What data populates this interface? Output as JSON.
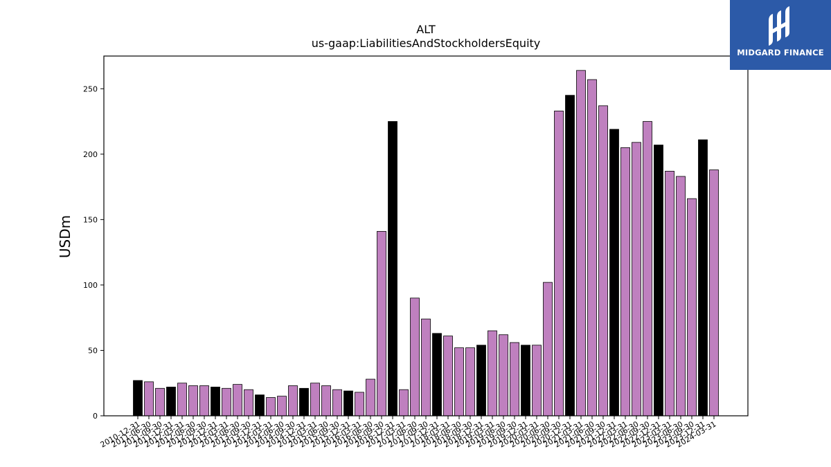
{
  "brand": {
    "name": "MIDGARD FINANCE",
    "logo_icon": "midgard-logo-icon",
    "background": "#2c5aa8"
  },
  "colors": {
    "annual": "#000000",
    "quarterly": "#bf80bf",
    "edge": "#000000"
  },
  "chart_data": {
    "type": "bar",
    "title": "ALT",
    "subtitle": "us-gaap:LiabilitiesAndStockholdersEquity",
    "xlabel": "",
    "ylabel": "USDm",
    "ylim": [
      0,
      275
    ],
    "yticks": [
      0,
      50,
      100,
      150,
      200,
      250
    ],
    "grid": false,
    "categories": [
      "2010-12-31",
      "2011-06-30",
      "2011-09-30",
      "2011-12-31",
      "2012-03-31",
      "2012-06-30",
      "2012-09-30",
      "2012-12-31",
      "2013-03-31",
      "2013-06-30",
      "2013-09-30",
      "2013-12-31",
      "2014-03-31",
      "2014-06-30",
      "2014-09-30",
      "2014-12-31",
      "2015-03-31",
      "2015-06-30",
      "2015-09-30",
      "2015-12-31",
      "2016-03-31",
      "2016-06-30",
      "2016-09-30",
      "2016-12-31",
      "2017-03-31",
      "2017-06-30",
      "2017-09-30",
      "2017-12-31",
      "2018-03-31",
      "2018-06-30",
      "2018-09-30",
      "2018-12-31",
      "2019-03-31",
      "2019-06-30",
      "2019-09-30",
      "2019-12-31",
      "2020-03-31",
      "2020-06-30",
      "2020-09-30",
      "2020-12-31",
      "2021-03-31",
      "2021-06-30",
      "2021-09-30",
      "2021-12-31",
      "2022-03-31",
      "2022-06-30",
      "2022-09-30",
      "2022-12-31",
      "2023-03-31",
      "2023-06-30",
      "2023-09-30",
      "2023-12-31",
      "2024-03-31"
    ],
    "values": [
      27,
      26,
      21,
      22,
      25,
      23,
      23,
      22,
      21,
      24,
      20,
      16,
      14,
      15,
      23,
      21,
      25,
      23,
      20,
      19,
      18,
      28,
      141,
      225,
      20,
      90,
      74,
      63,
      61,
      52,
      52,
      54,
      65,
      62,
      56,
      54,
      54,
      102,
      233,
      245,
      264,
      257,
      237,
      219,
      205,
      209,
      225,
      207,
      187,
      183,
      166,
      211,
      188
    ],
    "annual": [
      true,
      false,
      false,
      true,
      false,
      false,
      false,
      true,
      false,
      false,
      false,
      true,
      false,
      false,
      false,
      true,
      false,
      false,
      false,
      true,
      false,
      false,
      false,
      true,
      false,
      false,
      false,
      true,
      false,
      false,
      false,
      true,
      false,
      false,
      false,
      true,
      false,
      false,
      false,
      true,
      false,
      false,
      false,
      true,
      false,
      false,
      false,
      true,
      false,
      false,
      false,
      true,
      false
    ]
  }
}
